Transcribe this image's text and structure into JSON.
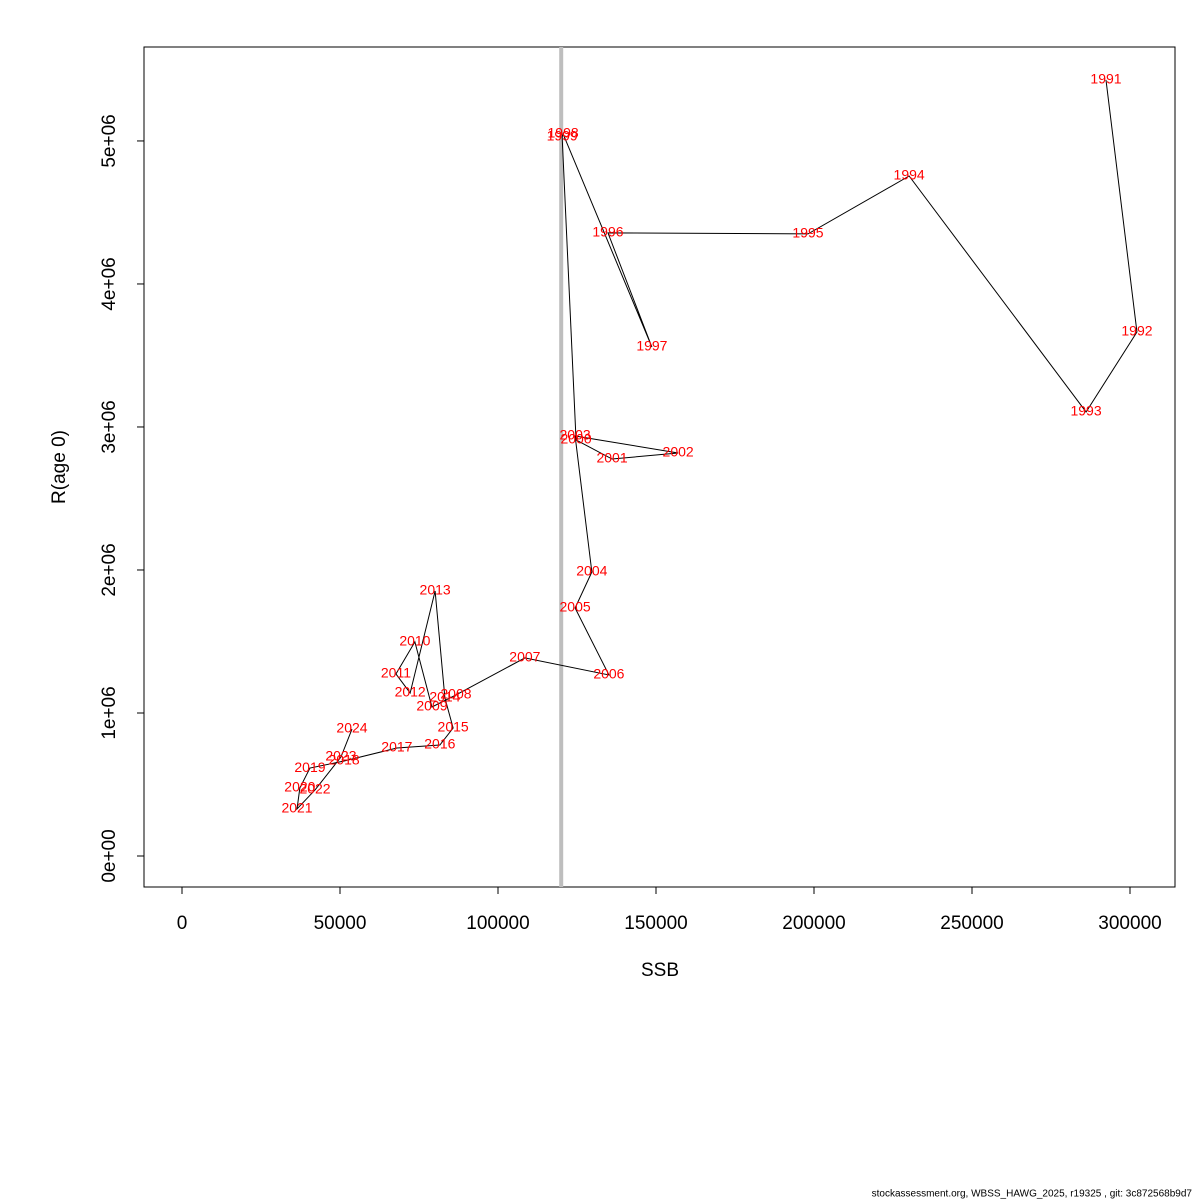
{
  "chart_data": {
    "type": "scatter",
    "xlabel": "SSB",
    "ylabel": "R(age 0)",
    "labels": [
      "1991",
      "1992",
      "1993",
      "1994",
      "1995",
      "1996",
      "1997",
      "1998",
      "1999",
      "2000",
      "2001",
      "2002",
      "2003",
      "2004",
      "2005",
      "2006",
      "2007",
      "2008",
      "2009",
      "2010",
      "2011",
      "2012",
      "2013",
      "2014",
      "2015",
      "2016",
      "2017",
      "2018",
      "2019",
      "2020",
      "2021",
      "2022",
      "2023",
      "2024"
    ],
    "x": [
      292400,
      302200,
      286100,
      230100,
      198100,
      134800,
      148700,
      120600,
      120300,
      124700,
      136100,
      157000,
      124400,
      129700,
      124400,
      135100,
      108500,
      86700,
      79100,
      73700,
      67700,
      72200,
      80100,
      83200,
      85800,
      81600,
      68000,
      51300,
      40500,
      37300,
      36400,
      42100,
      50300,
      53800
    ],
    "values": [
      5427000,
      3664000,
      3105000,
      4755000,
      4350000,
      4357000,
      3559000,
      5049000,
      5028000,
      2909000,
      2776000,
      2818000,
      2937000,
      1986000,
      1734000,
      1266000,
      1385000,
      1126000,
      1042000,
      1497000,
      1273000,
      1140000,
      1853000,
      1105000,
      895000,
      776000,
      755000,
      664000,
      615000,
      476000,
      329000,
      462000,
      692000,
      888000
    ],
    "label_color": "#ff0000",
    "line_color": "#000000",
    "vline": 120000,
    "vline_color": "#bebebe",
    "xlim": [
      -12025,
      314240
    ],
    "ylim": [
      -216783,
      5657000
    ],
    "xticks": [
      0,
      50000,
      100000,
      150000,
      200000,
      250000,
      300000
    ],
    "yticks": [
      {
        "value": 0,
        "label": "0e+00"
      },
      {
        "value": 1000000,
        "label": "1e+06"
      },
      {
        "value": 2000000,
        "label": "2e+06"
      },
      {
        "value": 3000000,
        "label": "3e+06"
      },
      {
        "value": 4000000,
        "label": "4e+06"
      },
      {
        "value": 5000000,
        "label": "5e+06"
      }
    ],
    "footer": "stockassessment.org, WBSS_HAWG_2025, r19325 , git: 3c872568b9d7"
  }
}
